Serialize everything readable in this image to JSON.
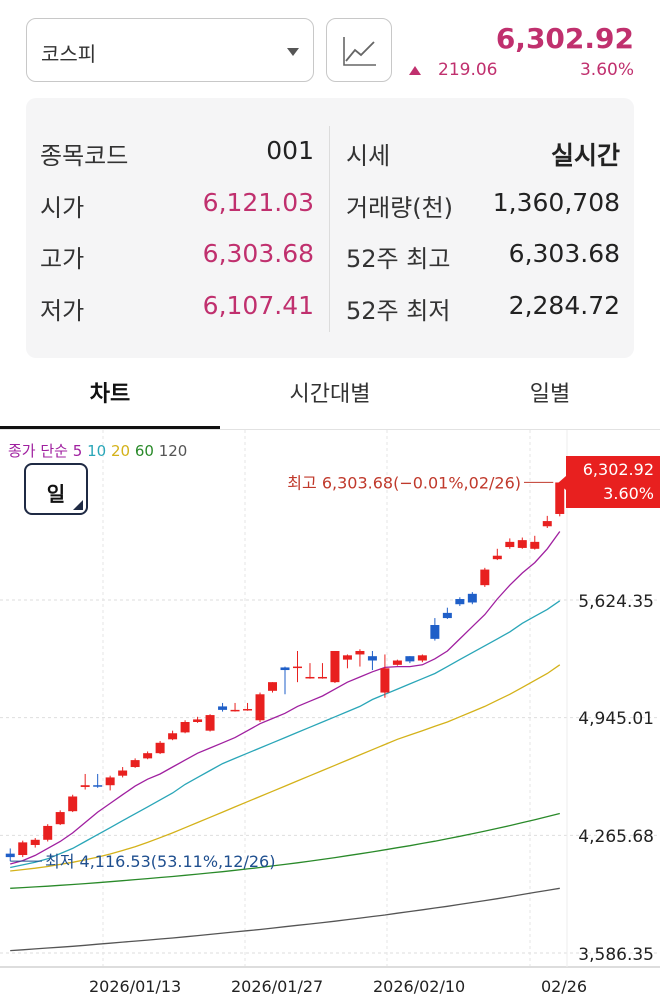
{
  "header": {
    "index_name": "코스피",
    "price": "6,302.92",
    "change": "219.06",
    "change_pct": "3.60%",
    "accent_color": "#c0306e"
  },
  "summary": {
    "left": [
      {
        "label": "종목코드",
        "value": "001"
      },
      {
        "label": "시가",
        "value": "6,121.03"
      },
      {
        "label": "고가",
        "value": "6,303.68"
      },
      {
        "label": "저가",
        "value": "6,107.41"
      }
    ],
    "right": [
      {
        "label": "시세",
        "value": "실시간"
      },
      {
        "label": "거래량(천)",
        "value": "1,360,708"
      },
      {
        "label": "52주 최고",
        "value": "6,303.68"
      },
      {
        "label": "52주 최저",
        "value": "2,284.72"
      }
    ]
  },
  "tabs": [
    {
      "label": "차트",
      "active": true
    },
    {
      "label": "시간대별",
      "active": false
    },
    {
      "label": "일별",
      "active": false
    }
  ],
  "chart": {
    "ma_legend": {
      "prefix": "종가 단순",
      "periods": [
        {
          "label": "5",
          "color": "#a020a0"
        },
        {
          "label": "10",
          "color": "#2aa6b8"
        },
        {
          "label": "20",
          "color": "#d4b21a"
        },
        {
          "label": "60",
          "color": "#2a8a2a"
        },
        {
          "label": "120",
          "color": "#555555"
        }
      ]
    },
    "period_button": "일",
    "current_tag": {
      "price": "6,302.92",
      "pct": "3.60%"
    },
    "max_annotation": "최고 6,303.68(−0.01%,02/26)",
    "min_annotation": "최저 4,116.53(53.11%,12/26)",
    "up_color": "#e8201f",
    "down_color": "#1f5fc8"
  },
  "chart_data": {
    "type": "candlestick",
    "ylim": [
      3586.35,
      6500
    ],
    "y_ticks": [
      "5,624.35",
      "4,945.01",
      "4,265.68",
      "3,586.35"
    ],
    "x_ticks": [
      "2026/01/13",
      "2026/01/27",
      "2026/02/10",
      "02/26"
    ],
    "candles": [
      [
        4160,
        4140,
        4190,
        4116.53
      ],
      [
        4152,
        4225,
        4235,
        4140
      ],
      [
        4210,
        4240,
        4250,
        4195
      ],
      [
        4240,
        4320,
        4330,
        4230
      ],
      [
        4330,
        4400,
        4410,
        4325
      ],
      [
        4405,
        4490,
        4500,
        4400
      ],
      [
        4545,
        4555,
        4620,
        4530
      ],
      [
        4555,
        4550,
        4620,
        4540
      ],
      [
        4555,
        4600,
        4610,
        4525
      ],
      [
        4610,
        4640,
        4660,
        4600
      ],
      [
        4660,
        4700,
        4710,
        4655
      ],
      [
        4710,
        4740,
        4750,
        4705
      ],
      [
        4740,
        4800,
        4810,
        4735
      ],
      [
        4820,
        4855,
        4870,
        4815
      ],
      [
        4860,
        4920,
        4930,
        4855
      ],
      [
        4920,
        4935,
        4950,
        4915
      ],
      [
        4870,
        4960,
        4965,
        4865
      ],
      [
        5010,
        4990,
        5030,
        4980
      ],
      [
        4990,
        4990,
        5030,
        4980
      ],
      [
        4990,
        4995,
        5030,
        4985
      ],
      [
        4930,
        5080,
        5090,
        4920
      ],
      [
        5100,
        5150,
        5150,
        5090
      ],
      [
        5235,
        5220,
        5240,
        5080
      ],
      [
        5240,
        5240,
        5330,
        5150
      ],
      [
        5180,
        5180,
        5260,
        5170
      ],
      [
        5180,
        5180,
        5260,
        5170
      ],
      [
        5150,
        5330,
        5330,
        5145
      ],
      [
        5280,
        5305,
        5310,
        5230
      ],
      [
        5310,
        5330,
        5340,
        5240
      ],
      [
        5300,
        5275,
        5330,
        5220
      ],
      [
        5090,
        5230,
        5310,
        5060
      ],
      [
        5250,
        5275,
        5280,
        5245
      ],
      [
        5300,
        5270,
        5300,
        5260
      ],
      [
        5275,
        5305,
        5310,
        5265
      ],
      [
        5480,
        5400,
        5520,
        5390
      ],
      [
        5550,
        5520,
        5580,
        5515
      ],
      [
        5630,
        5600,
        5640,
        5590
      ],
      [
        5660,
        5610,
        5670,
        5600
      ],
      [
        5710,
        5800,
        5810,
        5700
      ],
      [
        5860,
        5880,
        5920,
        5855
      ],
      [
        5930,
        5960,
        5980,
        5920
      ],
      [
        5925,
        5970,
        5985,
        5920
      ],
      [
        5920,
        5960,
        5995,
        5915
      ],
      [
        6050,
        6080,
        6110,
        6040
      ],
      [
        6121.03,
        6302.92,
        6303.68,
        6107.41
      ]
    ],
    "moving_averages": [
      {
        "name": "5",
        "values": [
          4100,
          4120,
          4150,
          4190,
          4230,
          4280,
          4340,
          4400,
          4450,
          4500,
          4550,
          4590,
          4620,
          4660,
          4700,
          4740,
          4770,
          4800,
          4830,
          4870,
          4910,
          4940,
          4970,
          5010,
          5040,
          5070,
          5110,
          5150,
          5180,
          5210,
          5235,
          5240,
          5240,
          5250,
          5285,
          5330,
          5400,
          5470,
          5540,
          5630,
          5710,
          5780,
          5840,
          5920,
          6020
        ]
      },
      {
        "name": "10",
        "values": [
          4080,
          4095,
          4110,
          4130,
          4160,
          4190,
          4230,
          4270,
          4310,
          4350,
          4390,
          4430,
          4470,
          4510,
          4560,
          4600,
          4640,
          4680,
          4710,
          4740,
          4770,
          4800,
          4830,
          4860,
          4890,
          4920,
          4950,
          4980,
          5010,
          5050,
          5080,
          5110,
          5140,
          5170,
          5200,
          5240,
          5280,
          5320,
          5360,
          5400,
          5440,
          5490,
          5530,
          5570,
          5620
        ]
      },
      {
        "name": "20",
        "values": [
          4060,
          4068,
          4076,
          4086,
          4098,
          4110,
          4125,
          4140,
          4158,
          4178,
          4200,
          4225,
          4252,
          4280,
          4310,
          4340,
          4370,
          4400,
          4430,
          4460,
          4490,
          4520,
          4550,
          4580,
          4610,
          4640,
          4670,
          4700,
          4730,
          4760,
          4790,
          4820,
          4845,
          4870,
          4895,
          4920,
          4950,
          4980,
          5010,
          5045,
          5080,
          5120,
          5160,
          5200,
          5250
        ]
      },
      {
        "name": "60",
        "values": [
          3960,
          3964,
          3968,
          3972,
          3977,
          3982,
          3987,
          3992,
          3998,
          4004,
          4010,
          4016,
          4022,
          4028,
          4035,
          4042,
          4049,
          4056,
          4064,
          4072,
          4080,
          4089,
          4098,
          4107,
          4117,
          4127,
          4137,
          4148,
          4159,
          4170,
          4182,
          4194,
          4206,
          4219,
          4232,
          4246,
          4260,
          4275,
          4290,
          4306,
          4322,
          4339,
          4356,
          4374,
          4392
        ]
      },
      {
        "name": "120",
        "values": [
          3600,
          3605,
          3610,
          3615,
          3620,
          3625,
          3631,
          3637,
          3643,
          3649,
          3655,
          3661,
          3667,
          3673,
          3680,
          3687,
          3694,
          3701,
          3708,
          3715,
          3722,
          3730,
          3738,
          3746,
          3754,
          3762,
          3770,
          3779,
          3788,
          3797,
          3806,
          3816,
          3826,
          3836,
          3846,
          3856,
          3867,
          3878,
          3889,
          3900,
          3912,
          3924,
          3936,
          3948,
          3960
        ]
      }
    ]
  }
}
